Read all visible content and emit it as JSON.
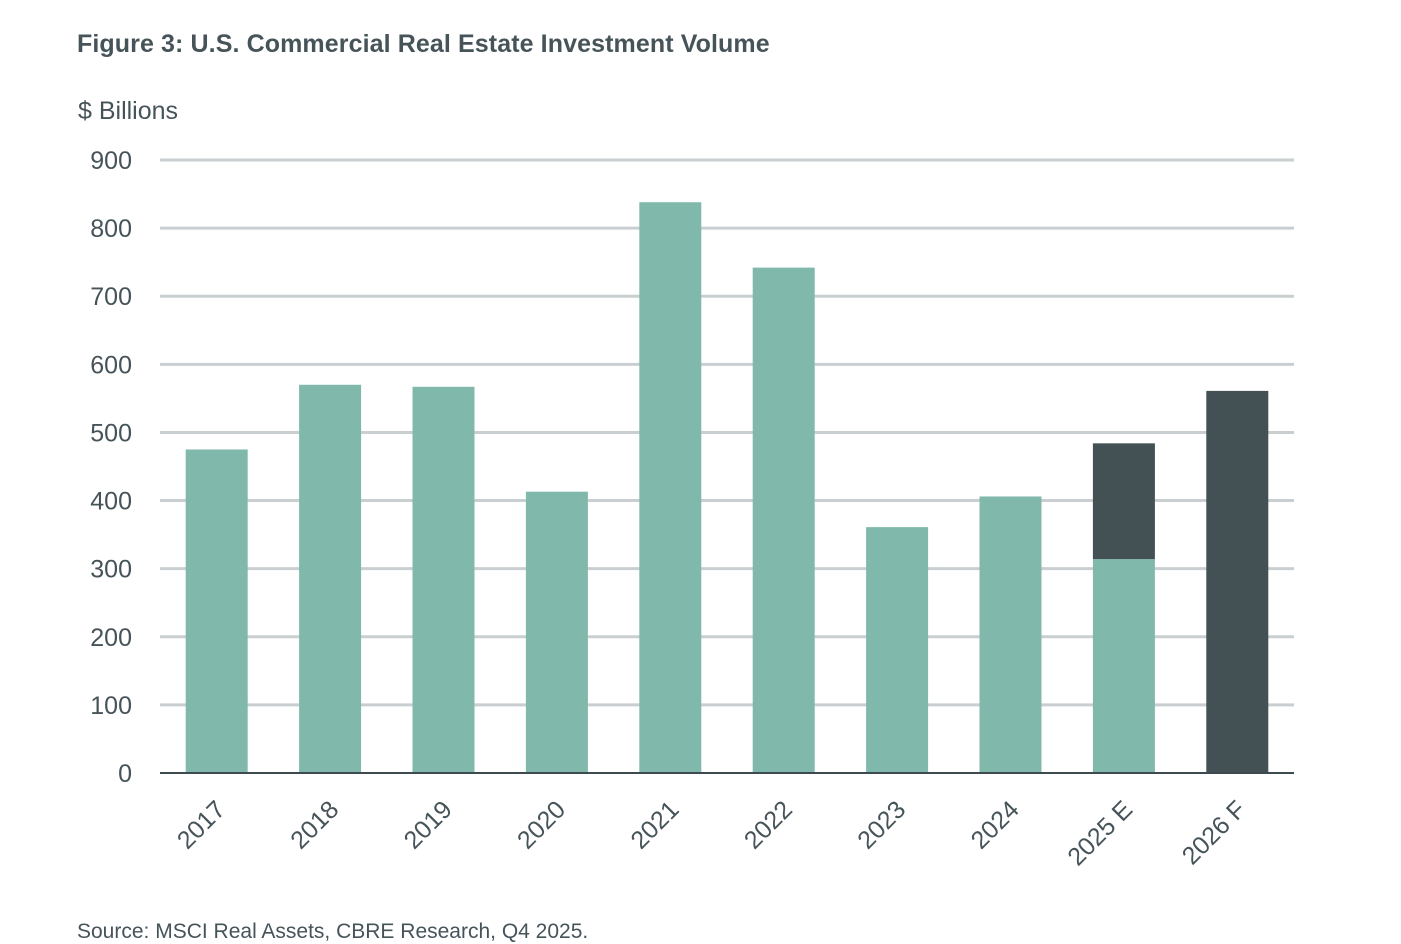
{
  "chart_data": {
    "type": "bar",
    "title": "Figure 3: U.S. Commercial Real Estate Investment Volume",
    "ylabel": "$ Billions",
    "xlabel": "",
    "categories": [
      "2017",
      "2018",
      "2019",
      "2020",
      "2021",
      "2022",
      "2023",
      "2024",
      "2025 E",
      "2026 F"
    ],
    "stacked": true,
    "series": [
      {
        "color": "#80b9ab",
        "values": [
          475,
          570,
          567,
          413,
          838,
          742,
          361,
          406,
          314,
          0
        ]
      },
      {
        "color": "#435054",
        "values": [
          0,
          0,
          0,
          0,
          0,
          0,
          0,
          0,
          170,
          561
        ]
      }
    ],
    "ylim": [
      0,
      900
    ],
    "yticks": [
      0,
      100,
      200,
      300,
      400,
      500,
      600,
      700,
      800,
      900
    ],
    "grid": true,
    "legend": "none",
    "source": "Source: MSCI Real Assets, CBRE Research, Q4 2025."
  },
  "colors": {
    "grid": "#c9cfd1",
    "axis": "#3d4a4f",
    "text": "#46545a"
  }
}
